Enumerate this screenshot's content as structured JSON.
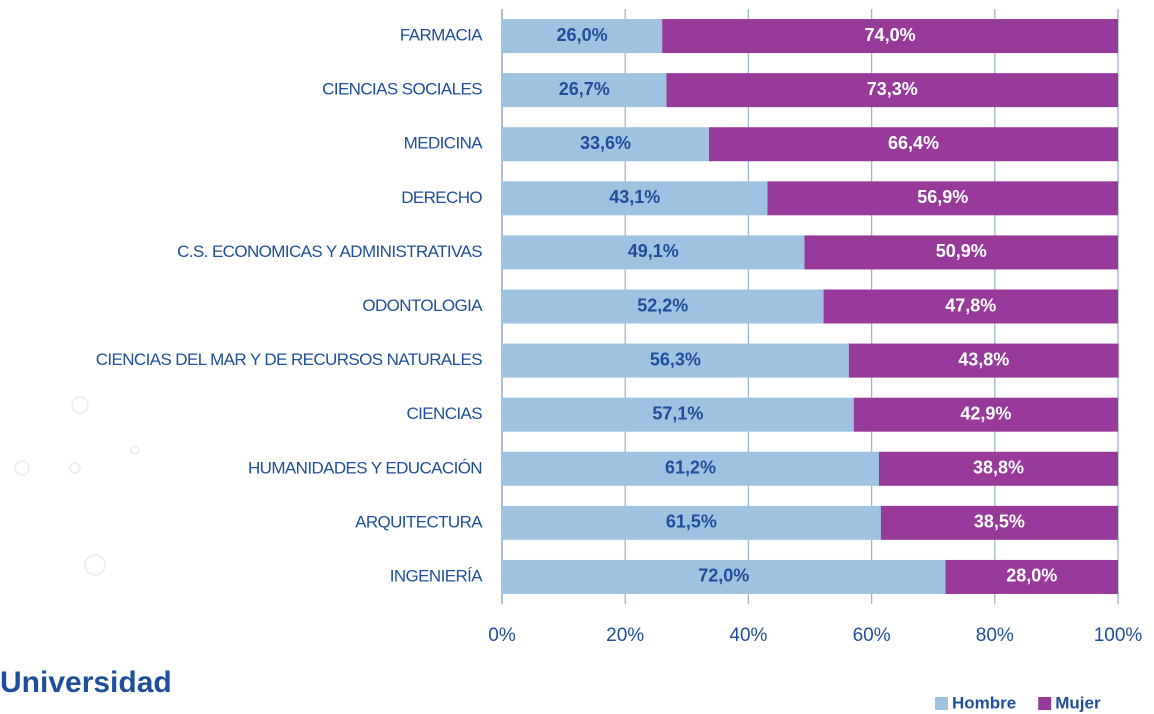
{
  "chart_data": {
    "type": "stacked-barh",
    "categories": [
      "FARMACIA",
      "CIENCIAS SOCIALES",
      "MEDICINA",
      "DERECHO",
      "C.S. ECONOMICAS Y ADMINISTRATIVAS",
      "ODONTOLOGIA",
      "CIENCIAS DEL MAR Y DE RECURSOS NATURALES",
      "CIENCIAS",
      "HUMANIDADES Y EDUCACIÓN",
      "ARQUITECTURA",
      "INGENIERÍA"
    ],
    "series": [
      {
        "name": "Hombre",
        "color": "#9dc3e0",
        "values": [
          26.0,
          26.7,
          33.6,
          43.1,
          49.1,
          52.2,
          56.3,
          57.1,
          61.2,
          61.5,
          72.0
        ],
        "value_labels": [
          "26,0%",
          "26,7%",
          "33,6%",
          "43,1%",
          "49,1%",
          "52,2%",
          "56,3%",
          "57,1%",
          "61,2%",
          "61,5%",
          "72,0%"
        ]
      },
      {
        "name": "Mujer",
        "color": "#973a9a",
        "values": [
          74.0,
          73.3,
          66.4,
          56.9,
          50.9,
          47.8,
          43.8,
          42.9,
          38.8,
          38.5,
          28.0
        ],
        "value_labels": [
          "74,0%",
          "73,3%",
          "66,4%",
          "56,9%",
          "50,9%",
          "47,8%",
          "43,8%",
          "42,9%",
          "38,8%",
          "38,5%",
          "28,0%"
        ]
      }
    ],
    "xlim": [
      0,
      100
    ],
    "xticks": [
      {
        "value": 0,
        "label": "0%"
      },
      {
        "value": 20,
        "label": "20%"
      },
      {
        "value": 40,
        "label": "40%"
      },
      {
        "value": 60,
        "label": "60%"
      },
      {
        "value": 80,
        "label": "80%"
      },
      {
        "value": 100,
        "label": "100%"
      }
    ],
    "grid": true,
    "legend": "bottom-right"
  },
  "logo_text": "Universidad"
}
